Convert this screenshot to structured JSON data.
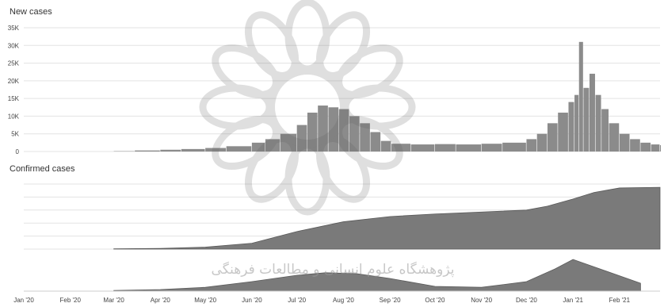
{
  "chart_data": [
    {
      "type": "bar",
      "title": "New cases",
      "ylim": [
        0,
        35000
      ],
      "y_ticks": [
        {
          "value": 0,
          "label": "0"
        },
        {
          "value": 5000,
          "label": "5K"
        },
        {
          "value": 10000,
          "label": "10K"
        },
        {
          "value": 15000,
          "label": "15K"
        },
        {
          "value": 20000,
          "label": "20K"
        },
        {
          "value": 25000,
          "label": "25K"
        },
        {
          "value": 30000,
          "label": "30K"
        },
        {
          "value": 35000,
          "label": "35K"
        }
      ],
      "grid": true,
      "x_start": "2020-01-01",
      "x_end": "2021-02-28",
      "series": [
        {
          "x": [
            "2020-03-01",
            "2020-03-15",
            "2020-04-01",
            "2020-04-15",
            "2020-05-01",
            "2020-05-15",
            "2020-06-01",
            "2020-06-10",
            "2020-06-20",
            "2020-07-01",
            "2020-07-08",
            "2020-07-15",
            "2020-07-22",
            "2020-07-29",
            "2020-08-05",
            "2020-08-12",
            "2020-08-19",
            "2020-08-26",
            "2020-09-02",
            "2020-09-15",
            "2020-10-01",
            "2020-10-15",
            "2020-11-01",
            "2020-11-15",
            "2020-12-01",
            "2020-12-08",
            "2020-12-15",
            "2020-12-22",
            "2020-12-29",
            "2021-01-02",
            "2021-01-05",
            "2021-01-08",
            "2021-01-12",
            "2021-01-16",
            "2021-01-20",
            "2021-01-25",
            "2021-02-01",
            "2021-02-08",
            "2021-02-15",
            "2021-02-22",
            "2021-02-28"
          ],
          "values": [
            100,
            300,
            500,
            700,
            1000,
            1500,
            2500,
            3500,
            5000,
            7500,
            11000,
            13000,
            12500,
            12000,
            10000,
            8000,
            5500,
            3000,
            2200,
            2000,
            2100,
            2000,
            2200,
            2500,
            3500,
            5000,
            8000,
            11000,
            14000,
            16000,
            31000,
            18000,
            22000,
            16000,
            12000,
            8000,
            5000,
            3500,
            2500,
            2000,
            1800
          ]
        }
      ]
    },
    {
      "type": "area",
      "title": "Confirmed cases",
      "grid": true,
      "x_start": "2020-01-01",
      "x_end": "2021-02-28",
      "ylim": [
        0,
        1
      ],
      "series": [
        {
          "x": [
            "2020-03-01",
            "2020-04-01",
            "2020-05-01",
            "2020-06-01",
            "2020-07-01",
            "2020-08-01",
            "2020-09-01",
            "2020-10-01",
            "2020-11-01",
            "2020-12-01",
            "2020-12-15",
            "2021-01-01",
            "2021-01-15",
            "2021-02-01",
            "2021-02-28"
          ],
          "values": [
            0.005,
            0.01,
            0.03,
            0.09,
            0.27,
            0.42,
            0.5,
            0.54,
            0.57,
            0.6,
            0.66,
            0.77,
            0.87,
            0.94,
            0.95
          ]
        }
      ]
    },
    {
      "type": "area",
      "x_start": "2020-01-01",
      "x_end": "2021-02-28",
      "ylim": [
        0,
        1
      ],
      "x_ticks": [
        "Jan '20",
        "Feb '20",
        "Mar '20",
        "Apr '20",
        "May '20",
        "Jun '20",
        "Jul '20",
        "Aug '20",
        "Sep '20",
        "Oct '20",
        "Nov '20",
        "Dec '20",
        "Jan '21",
        "Feb '21"
      ],
      "series": [
        {
          "x": [
            "2020-03-01",
            "2020-04-01",
            "2020-05-01",
            "2020-06-01",
            "2020-07-01",
            "2020-07-20",
            "2020-08-10",
            "2020-09-01",
            "2020-10-01",
            "2020-11-01",
            "2020-12-01",
            "2020-12-20",
            "2021-01-01",
            "2021-02-15"
          ],
          "values": [
            0.02,
            0.05,
            0.12,
            0.3,
            0.5,
            0.58,
            0.55,
            0.4,
            0.15,
            0.12,
            0.3,
            0.7,
            1.0,
            0.25
          ]
        }
      ]
    }
  ],
  "colors": {
    "bar": "#8b8b8b",
    "area": "#7a7a7a",
    "grid": "#e3e3e3",
    "text": "#444444"
  },
  "watermark": "پژوهشگاه علوم انسانی و مطالعات فرهنگی"
}
